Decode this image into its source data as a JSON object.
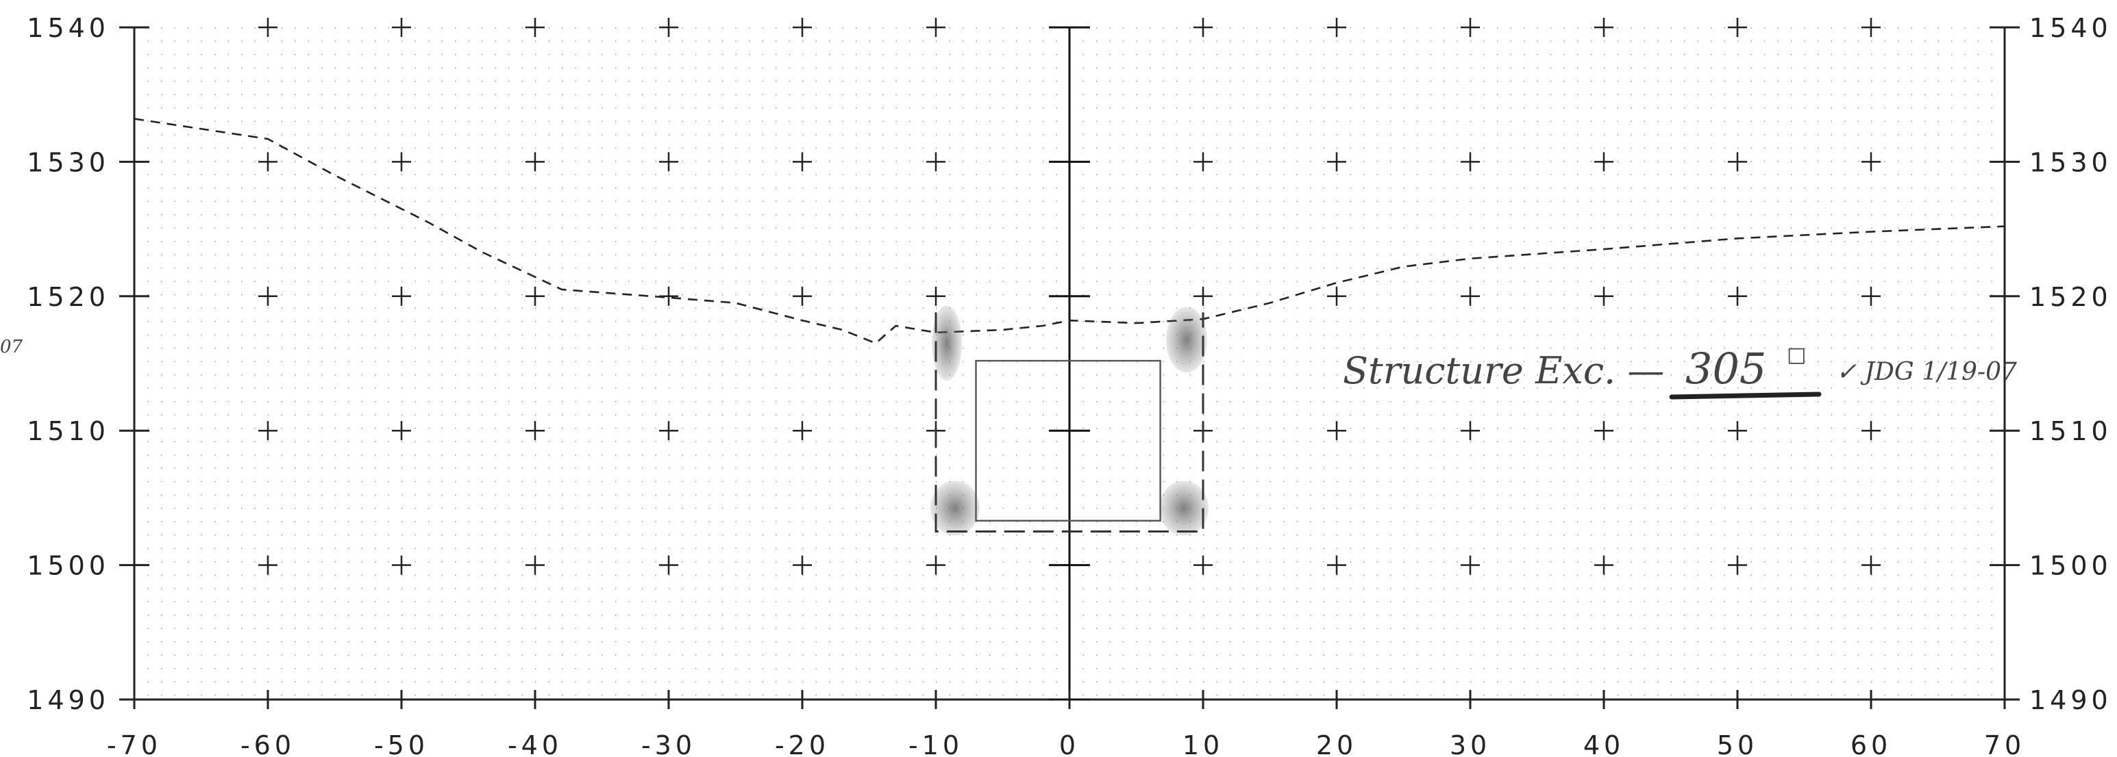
{
  "grid": {
    "x_ticks": [
      "-70",
      "-60",
      "-50",
      "-40",
      "-30",
      "-20",
      "-10",
      "0",
      "10",
      "20",
      "30",
      "40",
      "50",
      "60",
      "70"
    ],
    "y_ticks": [
      "1540",
      "1530",
      "1520",
      "1510",
      "1500",
      "1490"
    ],
    "xlim": [
      -70,
      70
    ],
    "ylim": [
      1490,
      1540
    ]
  },
  "ground_profile": [
    [
      -70,
      1533.2
    ],
    [
      -60,
      1531.7
    ],
    [
      -55,
      1529
    ],
    [
      -48,
      1525.5
    ],
    [
      -44,
      1523.3
    ],
    [
      -38,
      1520.5
    ],
    [
      -30,
      1519.9
    ],
    [
      -25,
      1519.5
    ],
    [
      -20,
      1518.2
    ],
    [
      -17,
      1517.5
    ],
    [
      -14.5,
      1516.5
    ],
    [
      -13,
      1517.8
    ],
    [
      -10,
      1517.3
    ],
    [
      -5,
      1517.5
    ],
    [
      -2,
      1517.8
    ],
    [
      0,
      1518.2
    ],
    [
      5,
      1518.0
    ],
    [
      10,
      1518.3
    ],
    [
      15,
      1519.5
    ],
    [
      20,
      1521.0
    ],
    [
      25,
      1522.2
    ],
    [
      30,
      1522.8
    ],
    [
      40,
      1523.5
    ],
    [
      50,
      1524.3
    ],
    [
      60,
      1524.8
    ],
    [
      70,
      1525.2
    ]
  ],
  "excavation": {
    "x": [
      -10,
      10
    ],
    "y": [
      1502.5,
      1518.8
    ]
  },
  "structure": {
    "x": [
      -7,
      6.8
    ],
    "y": [
      1503.3,
      1515.2
    ]
  },
  "annotation": {
    "label": "Structure Exc. —",
    "value": "305",
    "unit": "□",
    "check": "✓ JDG 1/19-07"
  },
  "margin_note": "07"
}
